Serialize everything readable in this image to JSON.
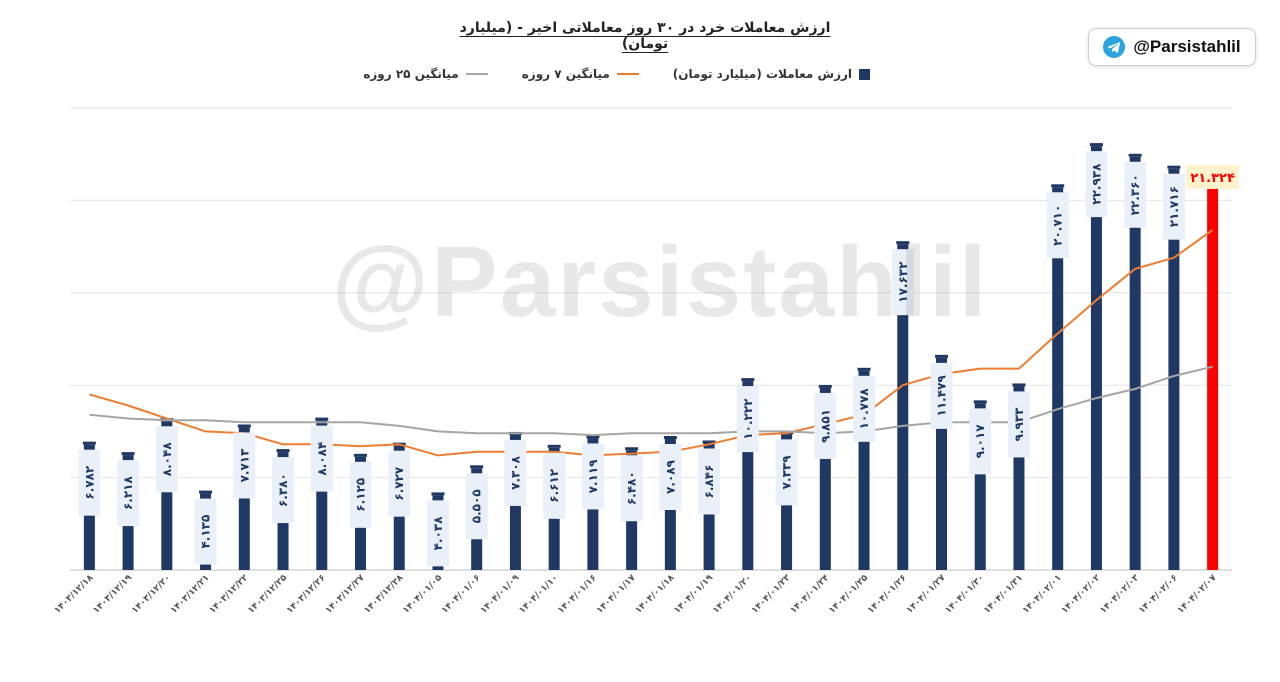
{
  "chart_data": {
    "type": "bar",
    "title": "ارزش معاملات خرد در ۳۰ روز معاملاتی اخیر - (میلیارد تومان)",
    "categories": [
      "۱۴۰۳/۱۲/۱۸",
      "۱۴۰۳/۱۲/۱۹",
      "۱۴۰۳/۱۲/۲۰",
      "۱۴۰۳/۱۲/۲۱",
      "۱۴۰۳/۱۲/۲۲",
      "۱۴۰۳/۱۲/۲۵",
      "۱۴۰۳/۱۲/۲۶",
      "۱۴۰۳/۱۲/۲۷",
      "۱۴۰۳/۱۲/۲۸",
      "۱۴۰۴/۰۱/۰۵",
      "۱۴۰۴/۰۱/۰۶",
      "۱۴۰۴/۰۱/۰۹",
      "۱۴۰۴/۰۱/۱۰",
      "۱۴۰۴/۰۱/۱۶",
      "۱۴۰۴/۰۱/۱۷",
      "۱۴۰۴/۰۱/۱۸",
      "۱۴۰۴/۰۱/۱۹",
      "۱۴۰۴/۰۱/۲۰",
      "۱۴۰۴/۰۱/۲۳",
      "۱۴۰۴/۰۱/۲۴",
      "۱۴۰۴/۰۱/۲۵",
      "۱۴۰۴/۰۱/۲۶",
      "۱۴۰۴/۰۱/۲۷",
      "۱۴۰۴/۰۱/۳۰",
      "۱۴۰۴/۰۱/۳۱",
      "۱۴۰۴/۰۲/۰۱",
      "۱۴۰۴/۰۲/۰۲",
      "۱۴۰۴/۰۲/۰۳",
      "۱۴۰۴/۰۲/۰۶",
      "۱۴۰۴/۰۲/۰۷"
    ],
    "series": [
      {
        "name": "ارزش معاملات (میلیارد تومان)",
        "kind": "bar",
        "color": "#203864",
        "values": [
          6.782,
          6.218,
          8.048,
          4.135,
          7.713,
          6.38,
          8.084,
          6.125,
          6.727,
          4.038,
          5.505,
          7.308,
          6.612,
          7.119,
          6.48,
          7.089,
          6.846,
          10.222,
          7.339,
          9.851,
          10.778,
          17.632,
          11.479,
          9.017,
          9.933,
          20.71,
          22.938,
          22.36,
          21.716,
          21.324
        ],
        "labels": [
          "۶.۷۸۲",
          "۶.۲۱۸",
          "۸.۰۴۸",
          "۴.۱۳۵",
          "۷.۷۱۳",
          "۶.۳۸۰",
          "۸.۰۸۴",
          "۶.۱۲۵",
          "۶.۷۲۷",
          "۴.۰۳۸",
          "۵.۵۰۵",
          "۷.۳۰۸",
          "۶.۶۱۲",
          "۷.۱۱۹",
          "۶.۴۸۰",
          "۷.۰۸۹",
          "۶.۸۴۶",
          "۱۰.۲۲۲",
          "۷.۳۳۹",
          "۹.۸۵۱",
          "۱۰.۷۷۸",
          "۱۷.۶۳۲",
          "۱۱.۴۷۹",
          "۹.۰۱۷",
          "۹.۹۳۳",
          "۲۰.۷۱۰",
          "۲۲.۹۳۸",
          "۲۲.۳۶۰",
          "۲۱.۷۱۶",
          "۲۱.۳۲۴"
        ]
      },
      {
        "name": "میانگین ۷ روزه",
        "kind": "line",
        "color": "#ed7d31",
        "values": [
          9.5,
          8.9,
          8.2,
          7.5,
          7.4,
          6.8,
          6.8,
          6.7,
          6.8,
          6.2,
          6.4,
          6.4,
          6.4,
          6.2,
          6.3,
          6.4,
          6.8,
          7.3,
          7.4,
          7.9,
          8.4,
          10.0,
          10.6,
          10.9,
          10.9,
          12.8,
          14.6,
          16.3,
          16.9,
          18.4
        ]
      },
      {
        "name": "میانگین ۲۵ روزه",
        "kind": "line",
        "color": "#a5a5a5",
        "values": [
          8.4,
          8.2,
          8.1,
          8.1,
          8.0,
          8.0,
          8.0,
          8.0,
          7.8,
          7.5,
          7.4,
          7.4,
          7.4,
          7.3,
          7.4,
          7.4,
          7.4,
          7.5,
          7.5,
          7.4,
          7.5,
          7.8,
          8.0,
          8.0,
          8.0,
          8.7,
          9.3,
          9.8,
          10.5,
          11.0
        ]
      }
    ],
    "highlight": {
      "index": 29,
      "color": "#ff0000",
      "label": "۲۱.۳۲۴",
      "label_bg": "#fff2cc",
      "label_color": "#ff0000"
    },
    "ylim": [
      0,
      25
    ],
    "grid": true,
    "legend_position": "top-center",
    "xlabel": "",
    "ylabel": ""
  },
  "legend": {
    "bar_label": "ارزش معاملات (میلیارد تومان)",
    "ma7_label": "میانگین ۷ روزه",
    "ma25_label": "میانگین ۲۵ روزه"
  },
  "brand": {
    "handle": "@Parsistahlil",
    "watermark": "@Parsistahlil",
    "icon": "telegram-icon",
    "icon_color": "#2aa3e0"
  }
}
